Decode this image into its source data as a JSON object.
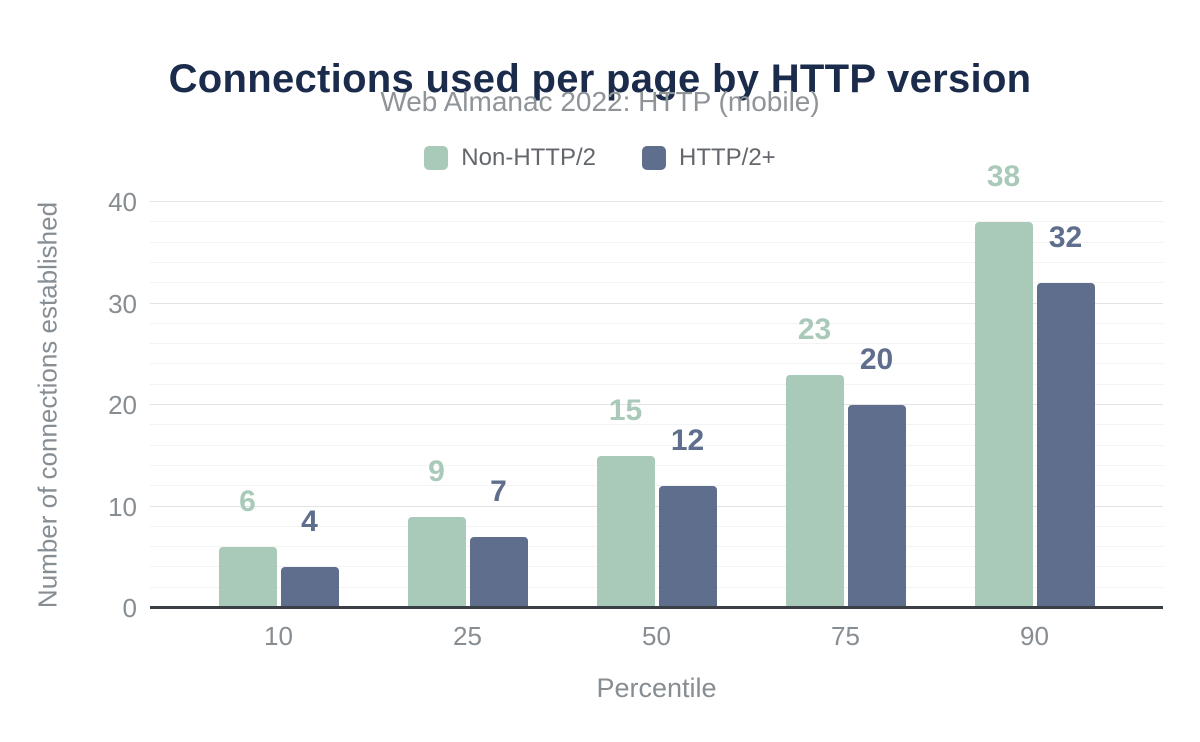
{
  "colors": {
    "background": "#ffffff",
    "title_text": "#1b2b4b",
    "subtitle_text": "#8f9499",
    "legend_text": "#63676c",
    "axis_text": "#868d93",
    "axis_line": "#3a3f45",
    "grid_major": "#e3e3e3",
    "grid_minor": "#f3f3f3"
  },
  "chart_data": {
    "type": "bar",
    "title": "Connections used per page by HTTP version",
    "subtitle": "Web Almanac 2022: HTTP (mobile)",
    "xlabel": "Percentile",
    "ylabel": "Number of connections established",
    "categories": [
      "10",
      "25",
      "50",
      "75",
      "90"
    ],
    "series": [
      {
        "name": "Non-HTTP/2",
        "color": "#a9cab8",
        "values": [
          6,
          9,
          15,
          23,
          38
        ]
      },
      {
        "name": "HTTP/2+",
        "color": "#5f6e8d",
        "values": [
          4,
          7,
          12,
          20,
          32
        ]
      }
    ],
    "ylim": [
      0,
      40
    ],
    "yticks": [
      0,
      10,
      20,
      30,
      40
    ],
    "minor_tick_step": 2,
    "grid": true,
    "legend_position": "top",
    "data_labels": true
  }
}
